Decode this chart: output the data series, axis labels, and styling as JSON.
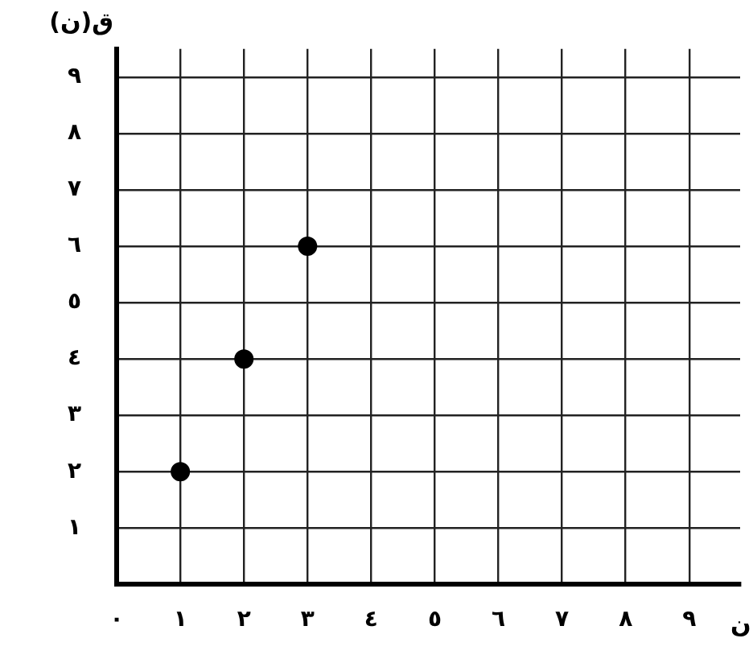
{
  "chart_data": {
    "type": "scatter",
    "xlabel": "ن",
    "ylabel": "ق(ن)",
    "x": [
      1,
      2,
      3
    ],
    "values": [
      2,
      4,
      6
    ],
    "color": "#000000",
    "marker": "circle",
    "xlim": [
      0,
      9.8
    ],
    "ylim": [
      0,
      9.5
    ],
    "xticks": [
      {
        "value": 0,
        "label": "٠"
      },
      {
        "value": 1,
        "label": "١"
      },
      {
        "value": 2,
        "label": "٢"
      },
      {
        "value": 3,
        "label": "٣"
      },
      {
        "value": 4,
        "label": "٤"
      },
      {
        "value": 5,
        "label": "٥"
      },
      {
        "value": 6,
        "label": "٦"
      },
      {
        "value": 7,
        "label": "٧"
      },
      {
        "value": 8,
        "label": "٨"
      },
      {
        "value": 9,
        "label": "٩"
      }
    ],
    "yticks": [
      {
        "value": 1,
        "label": "١"
      },
      {
        "value": 2,
        "label": "٢"
      },
      {
        "value": 3,
        "label": "٣"
      },
      {
        "value": 4,
        "label": "٤"
      },
      {
        "value": 5,
        "label": "٥"
      },
      {
        "value": 6,
        "label": "٦"
      },
      {
        "value": 7,
        "label": "٧"
      },
      {
        "value": 8,
        "label": "٨"
      },
      {
        "value": 9,
        "label": "٩"
      }
    ],
    "grid": true
  }
}
